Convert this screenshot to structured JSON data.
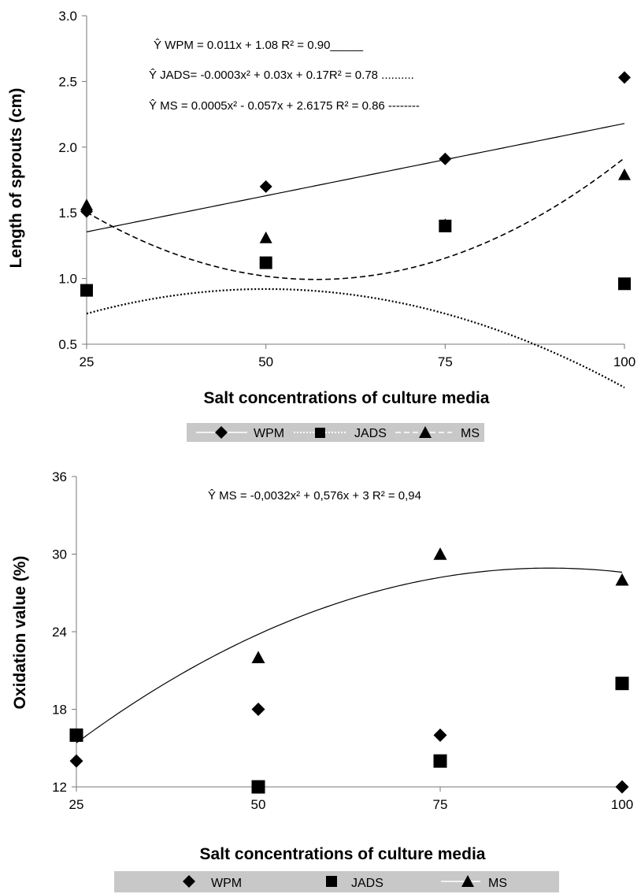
{
  "chart_data": [
    {
      "type": "scatter",
      "xlabel": "Salt concentrations of culture media",
      "ylabel": "Length of sprouts (cm)",
      "x": [
        25,
        50,
        75,
        100
      ],
      "xlim": [
        25,
        100
      ],
      "ylim": [
        0.5,
        3.0
      ],
      "xticks": [
        "25",
        "50",
        "75",
        "100"
      ],
      "yticks": [
        "0.5",
        "1.0",
        "1.5",
        "2.0",
        "2.5",
        "3.0"
      ],
      "grid": false,
      "legend_position": "bottom",
      "series": [
        {
          "name": "WPM",
          "marker": "diamond",
          "line": "solid",
          "values": [
            1.51,
            1.7,
            1.91,
            2.53
          ]
        },
        {
          "name": "JADS",
          "marker": "square",
          "line": "dotted",
          "values": [
            0.91,
            1.12,
            1.4,
            0.96
          ]
        },
        {
          "name": "MS",
          "marker": "triangle",
          "line": "dashed",
          "values": [
            1.56,
            1.31,
            1.41,
            1.79
          ]
        }
      ],
      "trendlines": [
        {
          "series": "WPM",
          "coef": [
            1.08,
            0.011,
            0
          ]
        },
        {
          "series": "JADS",
          "coef": [
            0.17,
            0.03,
            -0.0003
          ]
        },
        {
          "series": "MS",
          "coef": [
            2.6175,
            -0.057,
            0.0005
          ]
        }
      ],
      "annotations": [
        "Ŷ WPM = 0.011x  + 1.08 R² = 0.90_____",
        "Ŷ JADS= -0.0003x² + 0.03x + 0.17R² = 0.78 ..........",
        "Ŷ MS = 0.0005x² - 0.057x  + 2.6175  R² = 0.86  --------"
      ]
    },
    {
      "type": "scatter",
      "xlabel": "Salt concentrations of culture media",
      "ylabel": "Oxidation value (%)",
      "x": [
        25,
        50,
        75,
        100
      ],
      "xlim": [
        25,
        100
      ],
      "ylim": [
        12,
        36
      ],
      "xticks": [
        "25",
        "50",
        "75",
        "100"
      ],
      "yticks": [
        "12",
        "18",
        "24",
        "30",
        "36"
      ],
      "grid": false,
      "legend_position": "bottom",
      "series": [
        {
          "name": "WPM",
          "marker": "diamond",
          "line": "none",
          "values": [
            14,
            18,
            16,
            12
          ]
        },
        {
          "name": "JADS",
          "marker": "square",
          "line": "none",
          "values": [
            16,
            12,
            14,
            20
          ]
        },
        {
          "name": "MS",
          "marker": "triangle",
          "line": "solid",
          "values": [
            16,
            22,
            30,
            28
          ]
        }
      ],
      "trendlines": [
        {
          "series": "MS",
          "coef": [
            3,
            0.576,
            -0.0032
          ]
        }
      ],
      "annotations": [
        "Ŷ MS = -0,0032x² + 0,576x + 3 R² = 0,94"
      ]
    }
  ]
}
